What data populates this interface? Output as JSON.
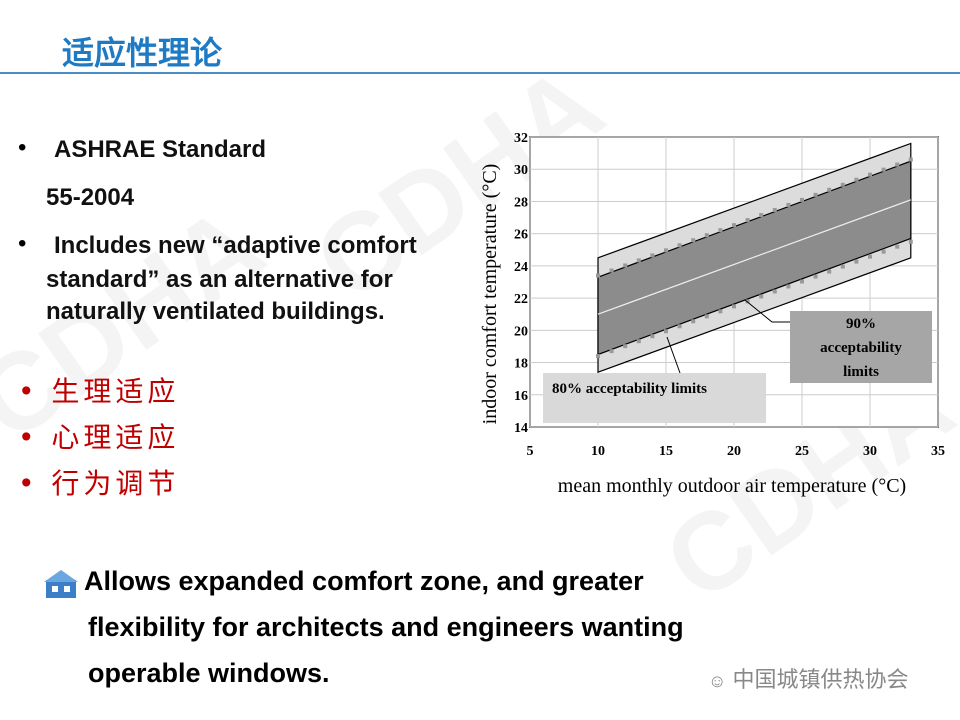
{
  "slide": {
    "title": "适应性理论",
    "watermark": "CDHA",
    "bullets": [
      {
        "text": "ASHRAE Standard"
      },
      {
        "text": "55-2004"
      },
      {
        "text": "Includes new “adaptive comfort"
      },
      {
        "text": "standard” as an alternative for"
      },
      {
        "text": "naturally ventilated buildings."
      }
    ],
    "cn_bullets": [
      "生理适应",
      "心理适应",
      "行为调节"
    ],
    "bottom_lines": [
      "Allows expanded comfort zone, and greater",
      "flexibility for architects and engineers wanting",
      "operable windows."
    ],
    "bottom_icon": "house-icon",
    "footer": {
      "icon": "wechat-icon",
      "text": "中国城镇供热协会"
    },
    "colors": {
      "title": "#1f7ac4",
      "cn_bullets": "#c00000"
    }
  },
  "chart_data": {
    "type": "area",
    "xlabel": "mean monthly outdoor air temperature (°C)",
    "ylabel": "indoor comfort  temperature (°C)",
    "xlim": [
      5,
      35
    ],
    "ylim": [
      14,
      32
    ],
    "xticks": [
      5,
      10,
      15,
      20,
      25,
      30,
      35
    ],
    "yticks": [
      14,
      16,
      18,
      20,
      22,
      24,
      26,
      28,
      30,
      32
    ],
    "grid": true,
    "bands": [
      {
        "name": "80% acceptability limits",
        "x": [
          10,
          33
        ],
        "lower": [
          17.4,
          24.5
        ],
        "upper": [
          24.5,
          31.6
        ],
        "color": "#dcdcdc"
      },
      {
        "name": "90% acceptability limits",
        "x": [
          10,
          33
        ],
        "lower": [
          18.5,
          25.7
        ],
        "upper": [
          23.3,
          30.5
        ],
        "color": "#8c8c8c"
      }
    ],
    "center_line": {
      "x": [
        10,
        33
      ],
      "y": [
        21.0,
        28.1
      ]
    },
    "markers": {
      "x_start": 10,
      "x_end": 33,
      "step": 1,
      "upper": [
        23.4,
        30.6
      ],
      "lower": [
        18.4,
        25.5
      ]
    },
    "labels": {
      "l80": "80% acceptability limits",
      "l90a": "90%",
      "l90b": "acceptability",
      "l90c": "limits"
    }
  }
}
